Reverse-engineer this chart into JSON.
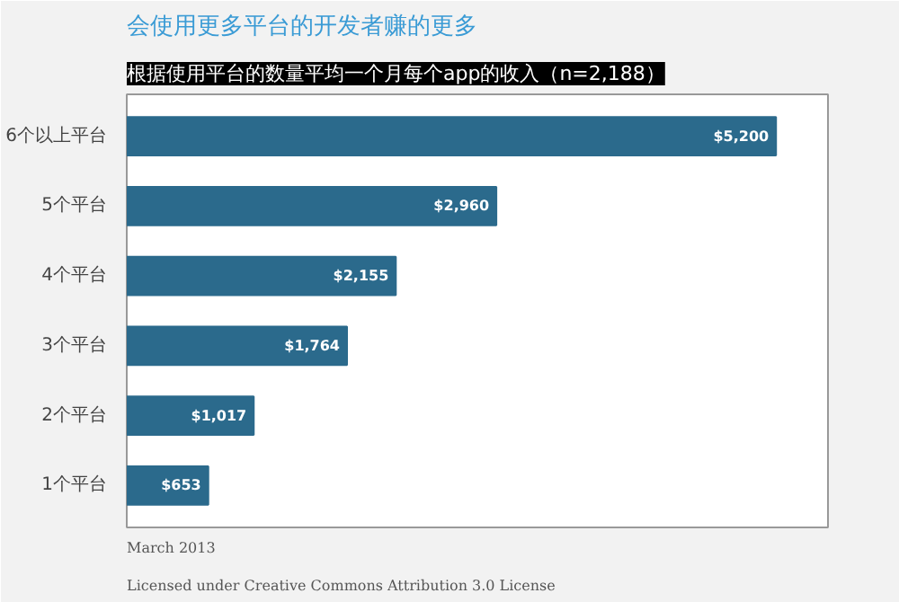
{
  "chart_data": {
    "type": "bar",
    "orientation": "horizontal",
    "title": "会使用更多平台的开发者赚的更多",
    "subtitle": "根据使用平台的数量平均一个月每个app的收入（n=2,188）",
    "categories": [
      "6个以上平台",
      "5个平台",
      "4个平台",
      "3个平台",
      "2个平台",
      "1个平台"
    ],
    "values": [
      5200,
      2960,
      2155,
      1764,
      1017,
      653
    ],
    "value_labels": [
      "$5,200",
      "$2,960",
      "$2,155",
      "$1,764",
      "$1,017",
      "$653"
    ],
    "color": "#2b6a8c",
    "grid": false,
    "annotations": [
      "March 2013",
      "Licensed under Creative Commons Attribution 3.0 License"
    ]
  }
}
